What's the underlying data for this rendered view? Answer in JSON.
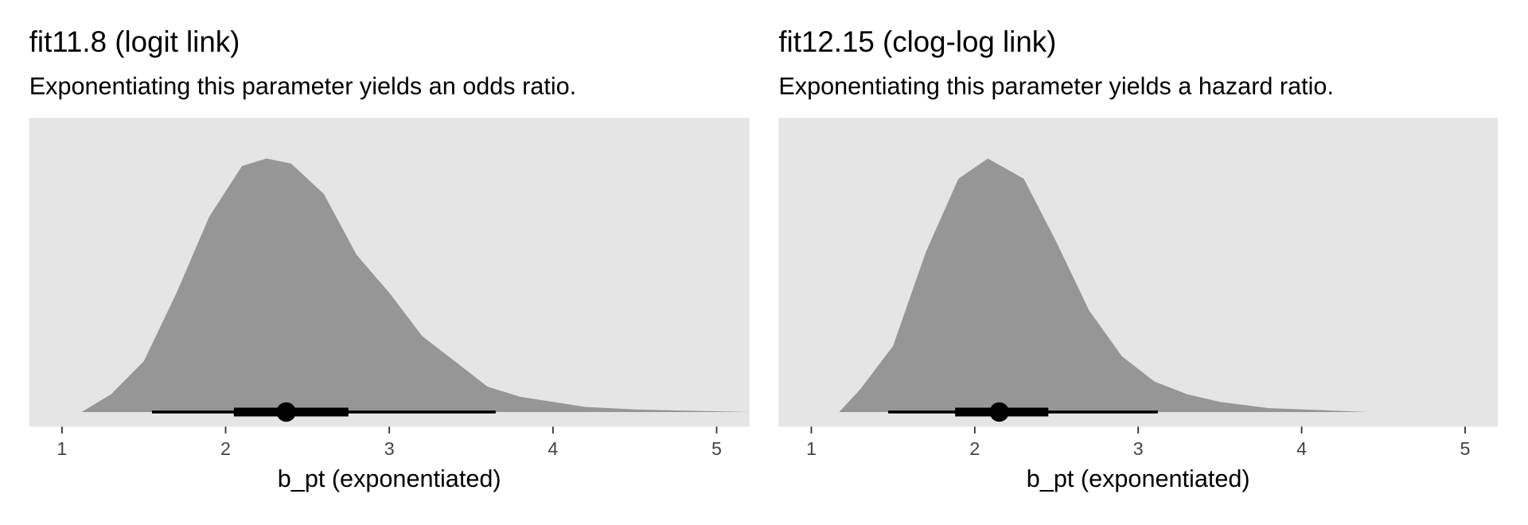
{
  "chart_data": [
    {
      "type": "density",
      "title": "fit11.8 (logit link)",
      "subtitle": "Exponentiating this parameter yields an odds ratio.",
      "x_label": "b_pt (exponentiated)",
      "color": "#969696",
      "panel_color": "#e5e5e5",
      "x": [
        1.12,
        1.3,
        1.5,
        1.7,
        1.9,
        2.1,
        2.25,
        2.4,
        2.6,
        2.8,
        3.0,
        3.2,
        3.4,
        3.6,
        3.8,
        4.0,
        4.2,
        4.5,
        5.2
      ],
      "density": [
        0,
        0.07,
        0.2,
        0.47,
        0.77,
        0.97,
        1.0,
        0.98,
        0.86,
        0.62,
        0.47,
        0.3,
        0.2,
        0.1,
        0.06,
        0.04,
        0.02,
        0.01,
        0
      ],
      "point_estimate": 2.37,
      "interval_66": [
        2.05,
        2.75
      ],
      "interval_95": [
        1.55,
        3.65
      ],
      "xlim": [
        0.8,
        5.2
      ],
      "xticks": [
        1,
        2,
        3,
        4,
        5
      ],
      "ylim": [
        0,
        1.16
      ]
    },
    {
      "type": "density",
      "title": "fit12.15 (clog-log link)",
      "subtitle": "Exponentiating this parameter yields a hazard ratio.",
      "x_label": "b_pt (exponentiated)",
      "color": "#969696",
      "panel_color": "#e5e5e5",
      "x": [
        1.17,
        1.3,
        1.5,
        1.7,
        1.9,
        2.08,
        2.3,
        2.5,
        2.7,
        2.9,
        3.1,
        3.3,
        3.5,
        3.8,
        4.1,
        4.4
      ],
      "density": [
        0,
        0.09,
        0.26,
        0.63,
        0.92,
        1.0,
        0.92,
        0.67,
        0.4,
        0.22,
        0.12,
        0.07,
        0.04,
        0.015,
        0.008,
        0
      ],
      "point_estimate": 2.15,
      "interval_66": [
        1.88,
        2.45
      ],
      "interval_95": [
        1.47,
        3.12
      ],
      "xlim": [
        0.8,
        5.2
      ],
      "xticks": [
        1,
        2,
        3,
        4,
        5
      ],
      "ylim": [
        0,
        1.16
      ]
    }
  ]
}
